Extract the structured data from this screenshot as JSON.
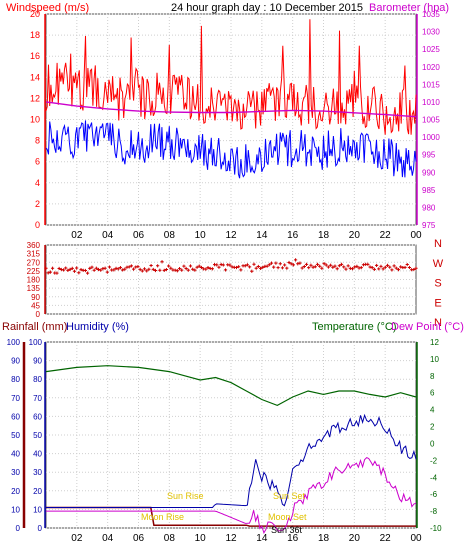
{
  "header": {
    "windspeed_label": "Windspeed (m/s)",
    "title": "24 hour graph day : 10 December 2015",
    "barometer_label": "Barometer (hpa)"
  },
  "colors": {
    "frame": "#555555",
    "grid": "#cfcfcf",
    "gust": "#ff0000",
    "avg_wind": "#0000ff",
    "barometer": "#cc00cc",
    "direction": "#cc0000",
    "rain": "#880000",
    "humidity": "#0000aa",
    "temperature": "#006400",
    "dew_point": "#cc00cc",
    "sun": "#e0c000"
  },
  "bottom": {
    "rainfall_label": "Rainfall (mm)",
    "humidity_label": "Humidity (%)",
    "temperature_label": "Temperature (°C)",
    "dew_label": "Dew Point (°C)",
    "sunrise_label": "Sun Rise",
    "sunset_label": "Sun Set",
    "moonrise_label": "Moon Rise",
    "moonset_label": "Moon Set",
    "sun_label": "Sun 36t"
  },
  "chart_data": [
    {
      "type": "line",
      "title": "24 hour graph day : 10 December 2015",
      "x_ticks": [
        "02",
        "04",
        "06",
        "08",
        "10",
        "12",
        "14",
        "16",
        "18",
        "20",
        "22",
        "00"
      ],
      "left_axis": {
        "label": "Windspeed (m/s)",
        "ylim": [
          0,
          20
        ],
        "ticks": [
          0,
          2,
          4,
          6,
          8,
          10,
          12,
          14,
          16,
          18,
          20
        ]
      },
      "right_axis": {
        "label": "Barometer (hpa)",
        "ylim": [
          975,
          1035
        ],
        "ticks": [
          975,
          980,
          985,
          990,
          995,
          1000,
          1005,
          1010,
          1015,
          1020,
          1025,
          1030,
          1035
        ]
      },
      "series": [
        {
          "name": "gust",
          "axis": "left",
          "x_hours": [
            0,
            1,
            2,
            3,
            4,
            5,
            6,
            7,
            8,
            9,
            10,
            11,
            12,
            13,
            14,
            15,
            16,
            17,
            18,
            19,
            20,
            21,
            22,
            23,
            24
          ],
          "values": [
            13.0,
            13.5,
            12.8,
            13.5,
            12.5,
            12.0,
            11.8,
            12.5,
            12.2,
            12.0,
            11.5,
            11.5,
            11.0,
            10.5,
            11.0,
            11.8,
            11.5,
            11.5,
            11.2,
            11.8,
            11.5,
            11.0,
            10.8,
            11.0,
            10.5
          ]
        },
        {
          "name": "average",
          "axis": "left",
          "x_hours": [
            0,
            1,
            2,
            3,
            4,
            5,
            6,
            7,
            8,
            9,
            10,
            11,
            12,
            13,
            14,
            15,
            16,
            17,
            18,
            19,
            20,
            21,
            22,
            23,
            24
          ],
          "values": [
            8.0,
            8.5,
            8.0,
            8.5,
            8.2,
            7.5,
            7.2,
            8.0,
            7.8,
            7.5,
            7.0,
            6.8,
            6.5,
            6.0,
            6.8,
            7.5,
            7.2,
            7.2,
            7.0,
            7.5,
            7.2,
            6.8,
            6.5,
            6.3,
            5.5
          ]
        },
        {
          "name": "barometer",
          "axis": "right",
          "x_hours": [
            0,
            2,
            4,
            6,
            8,
            10,
            12,
            14,
            16,
            18,
            20,
            22,
            24
          ],
          "values": [
            1010.0,
            1008.8,
            1008.0,
            1007.4,
            1007.1,
            1007.0,
            1007.0,
            1007.3,
            1007.6,
            1007.4,
            1006.9,
            1006.4,
            1005.8
          ]
        }
      ]
    },
    {
      "type": "scatter",
      "title": "",
      "ylabel": "",
      "ylim": [
        0,
        360
      ],
      "y_ticks": [
        0,
        45,
        90,
        135,
        180,
        225,
        270,
        315,
        360
      ],
      "compass_labels": [
        "N",
        "W",
        "S",
        "E",
        "N"
      ],
      "series": [
        {
          "name": "direction",
          "x_hours": [
            0,
            2,
            4,
            6,
            8,
            10,
            12,
            14,
            16,
            18,
            20,
            22,
            24
          ],
          "values": [
            225,
            228,
            232,
            238,
            240,
            242,
            245,
            250,
            255,
            250,
            248,
            240,
            245
          ]
        }
      ]
    },
    {
      "type": "line",
      "title": "",
      "left_axes": [
        {
          "label": "Rainfall (mm)",
          "ylim": [
            0,
            100
          ],
          "ticks": [
            0,
            10,
            20,
            30,
            40,
            50,
            60,
            70,
            80,
            90,
            100
          ]
        },
        {
          "label": "Humidity (%)",
          "ylim": [
            0,
            100
          ],
          "ticks": [
            0,
            10,
            20,
            30,
            40,
            50,
            60,
            70,
            80,
            90,
            100
          ]
        }
      ],
      "right_axis": {
        "label": "Temperature (°C)",
        "ylim": [
          -10,
          12
        ],
        "ticks": [
          -10,
          -8,
          -6,
          -4,
          -2,
          0,
          2,
          4,
          6,
          8,
          10,
          12
        ]
      },
      "x_ticks": [
        "02",
        "04",
        "06",
        "08",
        "10",
        "12",
        "14",
        "16",
        "18",
        "20",
        "22",
        "00"
      ],
      "series": [
        {
          "name": "rainfall",
          "axis": "left",
          "x_hours": [
            0,
            6.8,
            7.0,
            13.0,
            13.2,
            24
          ],
          "values": [
            11.0,
            11.0,
            1.5,
            1.5,
            1.0,
            1.0
          ]
        },
        {
          "name": "humidity",
          "axis": "left",
          "x_hours": [
            0,
            10.8,
            11.0,
            13.0,
            13.6,
            14.0,
            15.0,
            15.5,
            16.0,
            17.0,
            18.0,
            19.0,
            20.0,
            21.0,
            22.0,
            23.0,
            24.0
          ],
          "values": [
            11,
            11,
            13,
            12,
            38,
            28,
            20,
            13,
            32,
            42,
            50,
            54,
            57,
            59,
            55,
            43,
            38
          ]
        },
        {
          "name": "temperature",
          "axis": "right",
          "x_hours": [
            0,
            2,
            4,
            6,
            8,
            9,
            10,
            11,
            12,
            13,
            14,
            15,
            16,
            17,
            18,
            19,
            20,
            21,
            22,
            23,
            24
          ],
          "values": [
            8.5,
            9.0,
            9.2,
            9.0,
            8.5,
            8.0,
            7.5,
            7.8,
            7.2,
            6.2,
            5.2,
            4.5,
            5.5,
            6.2,
            5.8,
            6.2,
            6.2,
            5.8,
            5.5,
            6.0,
            5.5
          ]
        },
        {
          "name": "dew point",
          "axis": "right",
          "x_hours": [
            0,
            11.0,
            13.0,
            13.5,
            14.0,
            15.0,
            15.5,
            16.0,
            17.0,
            18.0,
            19.0,
            20.0,
            21.0,
            22.0,
            23.0,
            24.0
          ],
          "values": [
            -8.0,
            -8.0,
            -9.5,
            -8.5,
            -10.0,
            -9.8,
            -10.0,
            -8.0,
            -6.0,
            -4.5,
            -3.2,
            -2.5,
            -2.2,
            -3.5,
            -6.5,
            -7.0
          ]
        }
      ]
    }
  ]
}
